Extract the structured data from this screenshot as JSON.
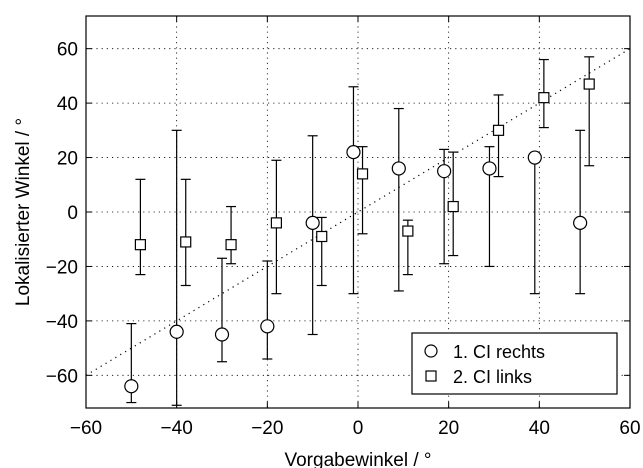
{
  "chart_data": {
    "type": "scatter",
    "title": "",
    "xlabel": "Vorgabewinkel / °",
    "ylabel": "Lokalisierter Winkel / °",
    "xlim": [
      -60,
      60
    ],
    "ylim": [
      -72,
      72
    ],
    "xticks": [
      -60,
      -40,
      -20,
      0,
      20,
      40,
      60
    ],
    "yticks": [
      -60,
      -40,
      -20,
      0,
      20,
      40,
      60
    ],
    "grid": true,
    "legend_position": "bottom-right",
    "reference_line": {
      "style": "dotted",
      "from": [
        -60,
        -60
      ],
      "to": [
        60,
        60
      ]
    },
    "series": [
      {
        "name": "1. CI rechts",
        "marker": "circle",
        "points": [
          {
            "x": -50,
            "y": -64,
            "low": -70,
            "high": -41
          },
          {
            "x": -40,
            "y": -44,
            "low": -71,
            "high": 30
          },
          {
            "x": -30,
            "y": -45,
            "low": -55,
            "high": -17
          },
          {
            "x": -20,
            "y": -42,
            "low": -54,
            "high": -18
          },
          {
            "x": -10,
            "y": -4,
            "low": -45,
            "high": 28
          },
          {
            "x": -1,
            "y": 22,
            "low": -30,
            "high": 46
          },
          {
            "x": 9,
            "y": 16,
            "low": -29,
            "high": 38
          },
          {
            "x": 19,
            "y": 15,
            "low": -19,
            "high": 23
          },
          {
            "x": 29,
            "y": 16,
            "low": -20,
            "high": 24
          },
          {
            "x": 39,
            "y": 20,
            "low": -30,
            "high": 20
          },
          {
            "x": 49,
            "y": -4,
            "low": -30,
            "high": 30
          }
        ]
      },
      {
        "name": "2. CI links",
        "marker": "square",
        "points": [
          {
            "x": -48,
            "y": -12,
            "low": -23,
            "high": 12
          },
          {
            "x": -38,
            "y": -11,
            "low": -27,
            "high": 12
          },
          {
            "x": -28,
            "y": -12,
            "low": -19,
            "high": 2
          },
          {
            "x": -18,
            "y": -4,
            "low": -30,
            "high": 19
          },
          {
            "x": -8,
            "y": -9,
            "low": -27,
            "high": -2
          },
          {
            "x": 1,
            "y": 14,
            "low": -8,
            "high": 24
          },
          {
            "x": 11,
            "y": -7,
            "low": -23,
            "high": -3
          },
          {
            "x": 21,
            "y": 2,
            "low": -16,
            "high": 22
          },
          {
            "x": 31,
            "y": 30,
            "low": 13,
            "high": 43
          },
          {
            "x": 41,
            "y": 42,
            "low": 31,
            "high": 56
          },
          {
            "x": 51,
            "y": 47,
            "low": 17,
            "high": 57
          }
        ]
      }
    ]
  }
}
